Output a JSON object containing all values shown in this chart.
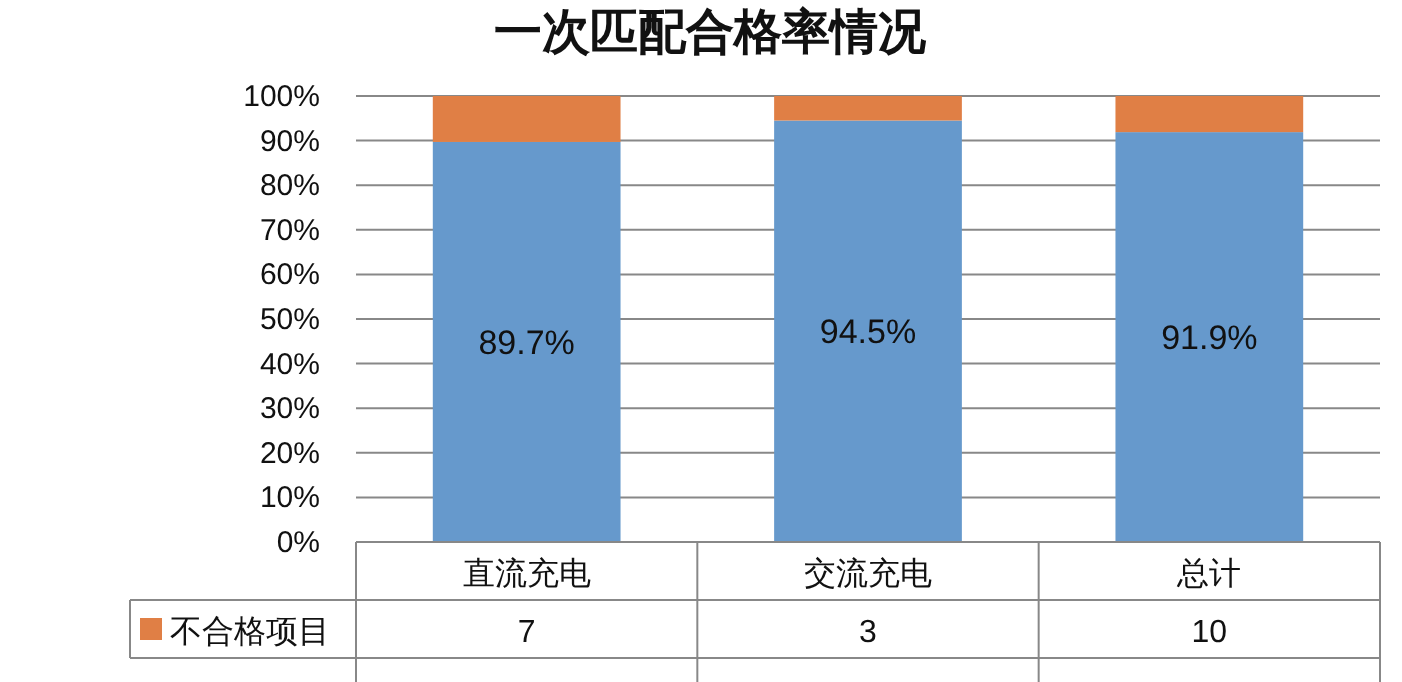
{
  "chart_data": {
    "type": "bar",
    "stacked": true,
    "title": "一次匹配合格率情况",
    "categories": [
      "直流充电",
      "交流充电",
      "总计"
    ],
    "series": [
      {
        "color": "#6699cc",
        "values": [
          89.7,
          94.5,
          91.9
        ],
        "value_labels": [
          "89.7%",
          "94.5%",
          "91.9%"
        ]
      },
      {
        "name": "不合格项目",
        "color": "#e07f45",
        "values": [
          10.3,
          5.5,
          8.1
        ]
      }
    ],
    "annotations": [
      "7",
      "3",
      "10"
    ],
    "ylim": [
      0,
      100
    ],
    "yticks": [
      {
        "value": 0,
        "label": "0%"
      },
      {
        "value": 10,
        "label": "10%"
      },
      {
        "value": 20,
        "label": "20%"
      },
      {
        "value": 30,
        "label": "30%"
      },
      {
        "value": 40,
        "label": "40%"
      },
      {
        "value": 50,
        "label": "50%"
      },
      {
        "value": 60,
        "label": "60%"
      },
      {
        "value": 70,
        "label": "70%"
      },
      {
        "value": 80,
        "label": "80%"
      },
      {
        "value": 90,
        "label": "90%"
      },
      {
        "value": 100,
        "label": "100%"
      }
    ],
    "grid": "y",
    "legend": "bottom"
  }
}
